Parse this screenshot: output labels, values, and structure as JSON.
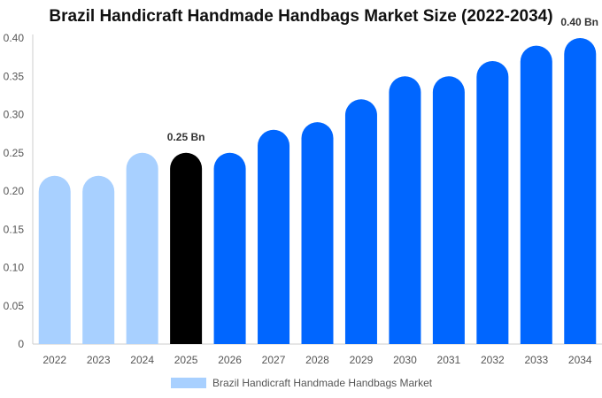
{
  "chart_data": {
    "type": "bar",
    "title": "Brazil Handicraft Handmade Handbags Market Size (2022-2034)",
    "xlabel": "",
    "ylabel": "",
    "categories": [
      "2022",
      "2023",
      "2024",
      "2025",
      "2026",
      "2027",
      "2028",
      "2029",
      "2030",
      "2031",
      "2032",
      "2033",
      "2034"
    ],
    "series": [
      {
        "name": "Brazil Handicraft Handmade Handbags Market",
        "values": [
          0.22,
          0.22,
          0.25,
          0.25,
          0.25,
          0.28,
          0.29,
          0.32,
          0.35,
          0.35,
          0.37,
          0.39,
          0.4
        ]
      }
    ],
    "ylim": [
      0,
      0.4
    ],
    "yticks": [
      "0",
      "0.05",
      "0.10",
      "0.15",
      "0.20",
      "0.25",
      "0.30",
      "0.35",
      "0.40"
    ],
    "data_labels": [
      {
        "index": 3,
        "text": "0.25 Bn"
      },
      {
        "index": 12,
        "text": "0.40 Bn"
      }
    ],
    "grid": false,
    "legend_position": "bottom",
    "colors": {
      "historical": "#a8d0ff",
      "base_year": "#000000",
      "forecast": "#0066ff",
      "axis": "#cccccc"
    }
  }
}
